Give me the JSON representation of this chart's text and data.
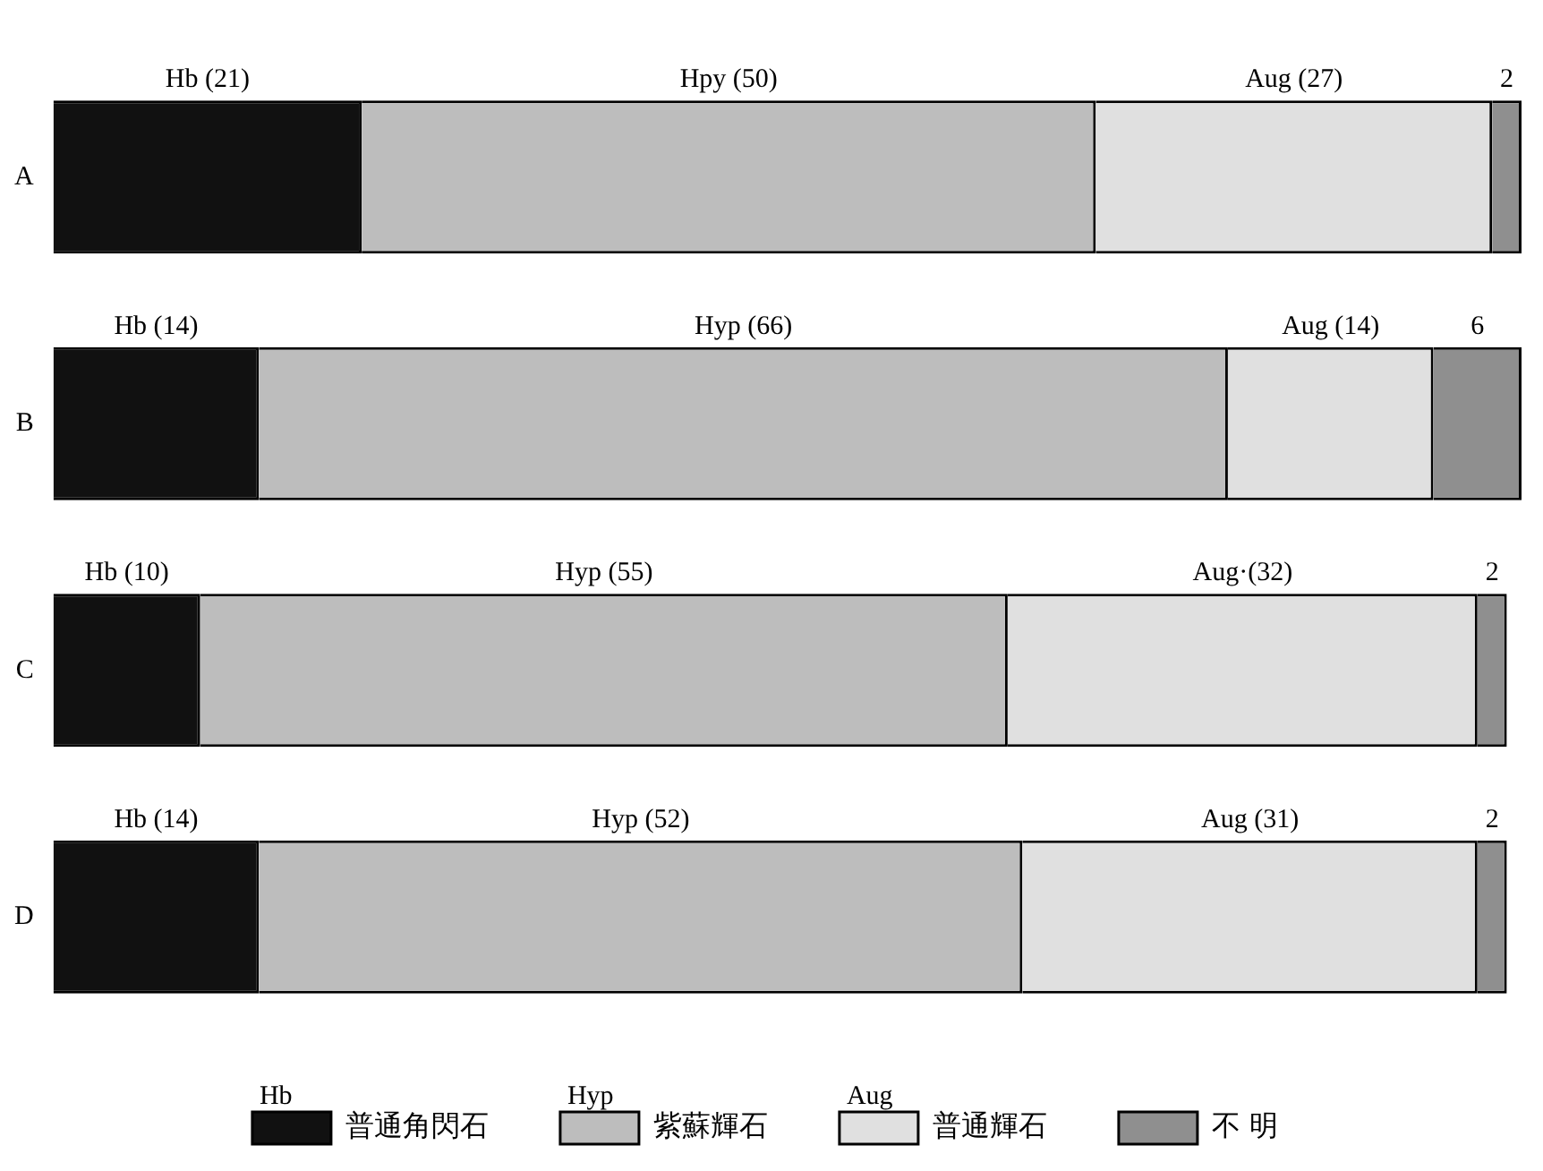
{
  "chart_data": {
    "type": "bar",
    "orientation": "horizontal",
    "stacked": true,
    "categories": [
      "A",
      "B",
      "C",
      "D"
    ],
    "series": [
      {
        "name": "普通角閃石",
        "color": "#111111",
        "values": [
          21,
          14,
          10,
          14
        ],
        "value_labels": [
          "Hb (21)",
          "Hb (14)",
          "Hb (10)",
          "Hb (14)"
        ]
      },
      {
        "name": "紫蘇輝石",
        "color": "#bdbdbd",
        "values": [
          50,
          66,
          55,
          52
        ],
        "value_labels": [
          "Hpy (50)",
          "Hyp (66)",
          "Hyp (55)",
          "Hyp (52)"
        ]
      },
      {
        "name": "普通輝石",
        "color": "#e0e0e0",
        "values": [
          27,
          14,
          32,
          31
        ],
        "value_labels": [
          "Aug (27)",
          "Aug (14)",
          "Aug·(32)",
          "Aug (31)"
        ]
      },
      {
        "name": "不 明",
        "color": "#8f8f8f",
        "values": [
          2,
          6,
          2,
          2
        ],
        "value_labels": [
          "2",
          "6",
          "2",
          "2"
        ]
      }
    ],
    "annotations": [
      "Hb",
      "Hyp",
      "Aug"
    ],
    "xlim": [
      0,
      100
    ],
    "tick_labels": "y",
    "grid": false,
    "legend": "bottom"
  }
}
